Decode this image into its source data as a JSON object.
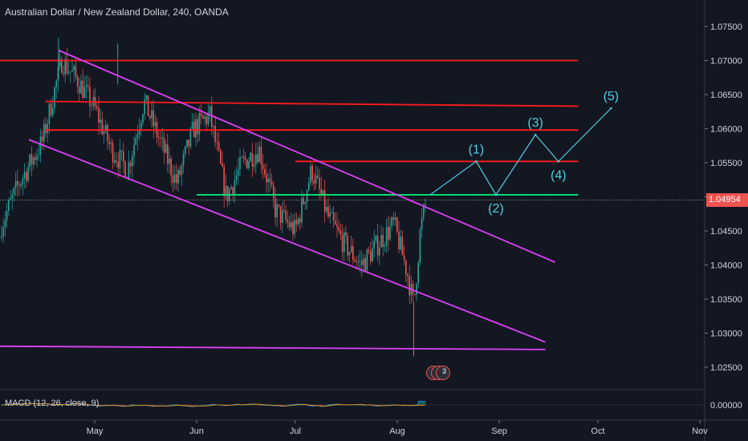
{
  "header": {
    "title": "Australian Dollar / New Zealand Dollar, 240, OANDA"
  },
  "macd": {
    "label": "MACD (12, 26, close, 9)",
    "ticks": [
      "0.00000"
    ]
  },
  "price_tag": {
    "value": "1.04954",
    "color": "#ef5350"
  },
  "badge": {
    "count": "2",
    "count2": "3"
  },
  "colors": {
    "background": "#131722",
    "up": "#26a69a",
    "down": "#ef5350",
    "resistance": "#ff1a1a",
    "channel": "#e040fb",
    "support": "#00e676",
    "wave": "#4dd0e1",
    "axis_text": "#d1d4dc"
  },
  "chart_data": {
    "type": "candlestick",
    "symbol": "Australian Dollar / New Zealand Dollar, 240, OANDA",
    "ylim": [
      1.022,
      1.078
    ],
    "y_ticks": [
      "1.07500",
      "1.07000",
      "1.06500",
      "1.06000",
      "1.05500",
      "1.05000",
      "1.04500",
      "1.04000",
      "1.03500",
      "1.03000",
      "1.02500"
    ],
    "x_ticks": [
      "May",
      "Jun",
      "Jul",
      "Aug",
      "Sep",
      "Oct",
      "Nov"
    ],
    "last_price": 1.04954,
    "close_path": [
      {
        "x": "Apr 1",
        "y": 1.044
      },
      {
        "x": "Apr 8",
        "y": 1.052
      },
      {
        "x": "Apr 15",
        "y": 1.058
      },
      {
        "x": "Apr 21",
        "y": 1.07
      },
      {
        "x": "Apr 26",
        "y": 1.067
      },
      {
        "x": "May 1",
        "y": 1.063
      },
      {
        "x": "May 6",
        "y": 1.057
      },
      {
        "x": "May 11",
        "y": 1.054
      },
      {
        "x": "May 16",
        "y": 1.064
      },
      {
        "x": "May 21",
        "y": 1.058
      },
      {
        "x": "May 26",
        "y": 1.052
      },
      {
        "x": "May 31",
        "y": 1.06
      },
      {
        "x": "Jun 5",
        "y": 1.062
      },
      {
        "x": "Jun 10",
        "y": 1.05
      },
      {
        "x": "Jun 15",
        "y": 1.055
      },
      {
        "x": "Jun 20",
        "y": 1.057
      },
      {
        "x": "Jun 25",
        "y": 1.048
      },
      {
        "x": "Jul 1",
        "y": 1.045
      },
      {
        "x": "Jul 6",
        "y": 1.054
      },
      {
        "x": "Jul 11",
        "y": 1.047
      },
      {
        "x": "Jul 16",
        "y": 1.043
      },
      {
        "x": "Jul 21",
        "y": 1.04
      },
      {
        "x": "Jul 26",
        "y": 1.043
      },
      {
        "x": "Jul 31",
        "y": 1.046
      },
      {
        "x": "Aug 4",
        "y": 1.039
      },
      {
        "x": "Aug 6",
        "y": 1.034
      },
      {
        "x": "Aug 8",
        "y": 1.045
      },
      {
        "x": "Aug 10",
        "y": 1.05
      }
    ],
    "horizontal_levels": [
      {
        "y": 1.07,
        "color": "#ff1a1a"
      },
      {
        "y": 1.0598,
        "color": "#ff1a1a"
      },
      {
        "y": 1.0552,
        "color": "#ff1a1a"
      },
      {
        "y": 1.0503,
        "color": "#00e676"
      }
    ],
    "trend_lines": [
      {
        "from": {
          "x": "Apr 16",
          "y": 1.064
        },
        "to": {
          "x": "Sep 25",
          "y": 1.0633
        },
        "color": "#ff1a1a"
      },
      {
        "from": {
          "x": "Apr 20",
          "y": 1.0715
        },
        "to": {
          "x": "Sep 18",
          "y": 1.0404
        },
        "color": "#e040fb"
      },
      {
        "from": {
          "x": "Apr 11",
          "y": 1.0584
        },
        "to": {
          "x": "Sep 15",
          "y": 1.0287
        },
        "color": "#e040fb"
      },
      {
        "from": {
          "x": "Mar 27",
          "y": 1.0281
        },
        "to": {
          "x": "Sep 15",
          "y": 1.0276
        },
        "color": "#e040fb"
      }
    ],
    "wave_projection": [
      {
        "label": "",
        "x": "Aug 11",
        "y": 1.0503
      },
      {
        "label": "(1)",
        "x": "Aug 25",
        "y": 1.0552
      },
      {
        "label": "(2)",
        "x": "Aug 31",
        "y": 1.0503
      },
      {
        "label": "(3)",
        "x": "Sep 12",
        "y": 1.0591
      },
      {
        "label": "(4)",
        "x": "Sep 19",
        "y": 1.0552
      },
      {
        "label": "(5)",
        "x": "Oct 5",
        "y": 1.063
      }
    ]
  }
}
